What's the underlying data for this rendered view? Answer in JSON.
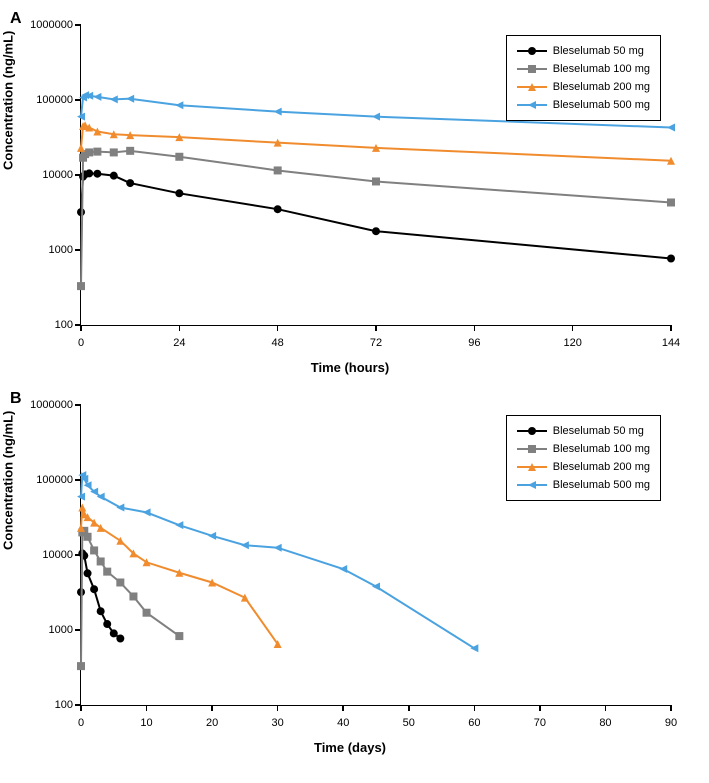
{
  "panels": [
    {
      "label": "A",
      "ylabel": "Concentration (ng/mL)",
      "xlabel": "Time (hours)",
      "y_log": true,
      "ylim": [
        100,
        1000000
      ],
      "yticks": [
        100,
        1000,
        10000,
        100000,
        1000000
      ],
      "ytick_labels": [
        "100",
        "1000",
        "10000",
        "100000",
        "1000000"
      ],
      "xlim": [
        0,
        144
      ],
      "xticks": [
        0,
        24,
        48,
        72,
        96,
        120,
        144
      ],
      "xtick_labels": [
        "0",
        "24",
        "48",
        "72",
        "96",
        "120",
        "144"
      ],
      "series": [
        {
          "name": "Bleselumab 50 mg",
          "color": "#000000",
          "marker": "circle",
          "x": [
            0,
            0.5,
            1,
            2,
            4,
            8,
            12,
            24,
            48,
            72,
            144
          ],
          "y": [
            3200,
            9500,
            10200,
            10500,
            10400,
            9800,
            7800,
            5700,
            3500,
            1780,
            770
          ]
        },
        {
          "name": "Bleselumab 100 mg",
          "color": "#808080",
          "marker": "square",
          "x": [
            0,
            0.5,
            1,
            2,
            4,
            8,
            12,
            24,
            48,
            72,
            144
          ],
          "y": [
            330,
            17000,
            19000,
            20000,
            20500,
            20000,
            21000,
            17500,
            11500,
            8200,
            4300
          ]
        },
        {
          "name": "Bleselumab 200 mg",
          "color": "#f08c2e",
          "marker": "triangle",
          "x": [
            0,
            0.5,
            1,
            2,
            4,
            8,
            12,
            24,
            48,
            72,
            144
          ],
          "y": [
            23000,
            45000,
            46000,
            43000,
            38000,
            35000,
            34000,
            32000,
            27000,
            23000,
            15500
          ]
        },
        {
          "name": "Bleselumab 500 mg",
          "color": "#4aa3e0",
          "marker": "tri-left",
          "x": [
            0,
            0.5,
            1,
            2,
            4,
            8,
            12,
            24,
            48,
            72,
            144
          ],
          "y": [
            60000,
            108000,
            116000,
            114000,
            110000,
            102000,
            104000,
            85000,
            70000,
            60000,
            43000
          ]
        }
      ]
    },
    {
      "label": "B",
      "ylabel": "Concentration (ng/mL)",
      "xlabel": "Time (days)",
      "y_log": true,
      "ylim": [
        100,
        1000000
      ],
      "yticks": [
        100,
        1000,
        10000,
        100000,
        1000000
      ],
      "ytick_labels": [
        "100",
        "1000",
        "10000",
        "100000",
        "1000000"
      ],
      "xlim": [
        0,
        90
      ],
      "xticks": [
        0,
        10,
        20,
        30,
        40,
        50,
        60,
        70,
        80,
        90
      ],
      "xtick_labels": [
        "0",
        "10",
        "20",
        "30",
        "40",
        "50",
        "60",
        "70",
        "80",
        "90"
      ],
      "series": [
        {
          "name": "Bleselumab 50 mg",
          "color": "#000000",
          "marker": "circle",
          "x": [
            0,
            0.2,
            0.5,
            1,
            2,
            3,
            4,
            5,
            6
          ],
          "y": [
            3200,
            10500,
            9800,
            5700,
            3500,
            1780,
            1200,
            900,
            770
          ]
        },
        {
          "name": "Bleselumab 100 mg",
          "color": "#808080",
          "marker": "square",
          "x": [
            0,
            0.2,
            0.5,
            1,
            2,
            3,
            4,
            6,
            8,
            10,
            15
          ],
          "y": [
            330,
            20000,
            21000,
            17500,
            11500,
            8200,
            6000,
            4300,
            2800,
            1700,
            830
          ]
        },
        {
          "name": "Bleselumab 200 mg",
          "color": "#f08c2e",
          "marker": "triangle",
          "x": [
            0,
            0.2,
            0.5,
            1,
            2,
            3,
            6,
            8,
            10,
            15,
            20,
            25,
            30
          ],
          "y": [
            23000,
            43000,
            35000,
            32000,
            27000,
            23000,
            15500,
            10500,
            8000,
            5800,
            4300,
            2700,
            650
          ]
        },
        {
          "name": "Bleselumab 500 mg",
          "color": "#4aa3e0",
          "marker": "tri-left",
          "x": [
            0,
            0.2,
            0.5,
            1,
            2,
            3,
            6,
            10,
            15,
            20,
            25,
            30,
            40,
            45,
            60
          ],
          "y": [
            60000,
            116000,
            104000,
            85000,
            70000,
            60000,
            43000,
            37000,
            25000,
            18000,
            13500,
            12500,
            6500,
            3800,
            570
          ]
        }
      ]
    }
  ],
  "legend_items": [
    {
      "label": "Bleselumab 50 mg",
      "color": "#000000",
      "marker": "circle"
    },
    {
      "label": "Bleselumab 100 mg",
      "color": "#808080",
      "marker": "square"
    },
    {
      "label": "Bleselumab 200 mg",
      "color": "#f08c2e",
      "marker": "triangle"
    },
    {
      "label": "Bleselumab 500 mg",
      "color": "#4aa3e0",
      "marker": "tri-left"
    }
  ],
  "line_width": 2,
  "marker_size": 8,
  "background_color": "#ffffff"
}
